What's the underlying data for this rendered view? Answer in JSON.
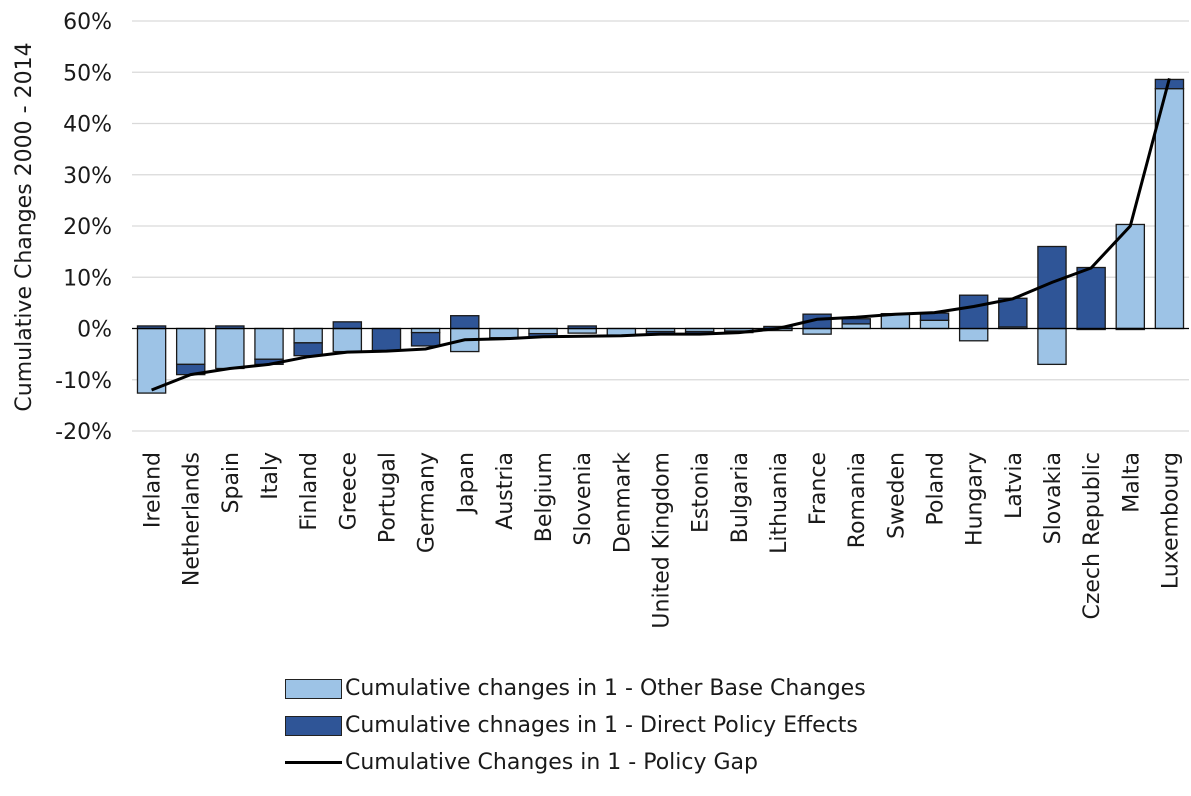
{
  "chart_data": {
    "type": "bar",
    "stacked": true,
    "ylabel": "Cumulative Changes 2000 - 2014",
    "ylim": [
      -20,
      60
    ],
    "yticks": [
      "-20%",
      "-10%",
      "0%",
      "10%",
      "20%",
      "30%",
      "40%",
      "50%",
      "60%"
    ],
    "grid": true,
    "legend_position": "bottom",
    "categories": [
      "Ireland",
      "Netherlands",
      "Spain",
      "Italy",
      "Finland",
      "Greece",
      "Portugal",
      "Germany",
      "Japan",
      "Austria",
      "Belgium",
      "Slovenia",
      "Denmark",
      "United Kingdom",
      "Estonia",
      "Bulgaria",
      "Lithuania",
      "France",
      "Romania",
      "Sweden",
      "Poland",
      "Hungary",
      "Latvia",
      "Slovakia",
      "Czech Republic",
      "Malta",
      "Luxembourg"
    ],
    "series": [
      {
        "name": "Cumulative changes in 1 - Other Base Changes",
        "kind": "bar",
        "color": "#9dc3e6",
        "values": [
          -12.6,
          -7.0,
          -7.8,
          -6.0,
          -2.8,
          -4.5,
          0.0,
          -0.8,
          -4.5,
          -1.8,
          -1.0,
          -0.9,
          -1.4,
          -0.6,
          -0.6,
          -0.5,
          -0.4,
          -1.1,
          0.9,
          2.9,
          1.6,
          -2.4,
          0.3,
          -7.0,
          -0.2,
          20.3,
          46.8
        ]
      },
      {
        "name": "Cumulative chnages in 1 - Direct Policy Effects",
        "kind": "bar",
        "color": "#2f5597",
        "values": [
          0.5,
          -2.0,
          0.5,
          -1.0,
          -2.5,
          1.3,
          -4.3,
          -2.6,
          2.5,
          -0.2,
          -0.6,
          0.5,
          0.0,
          -0.5,
          -0.4,
          -0.3,
          0.4,
          2.8,
          1.0,
          0.0,
          1.4,
          6.5,
          5.6,
          16.0,
          11.9,
          -0.2,
          1.8
        ]
      },
      {
        "name": "Cumulative Changes in 1 - Policy Gap",
        "kind": "line",
        "color": "#000000",
        "values": [
          -12.0,
          -9.0,
          -7.8,
          -7.0,
          -5.5,
          -4.6,
          -4.4,
          -4.0,
          -2.2,
          -2.0,
          -1.6,
          -1.5,
          -1.4,
          -1.1,
          -1.1,
          -0.8,
          0.0,
          1.8,
          2.2,
          2.8,
          3.1,
          4.3,
          5.8,
          9.0,
          11.8,
          20.0,
          48.8
        ]
      }
    ]
  }
}
